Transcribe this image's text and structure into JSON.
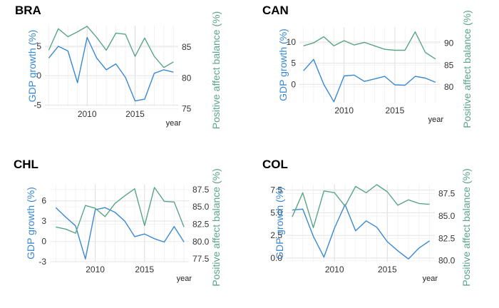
{
  "colors": {
    "gdp": "#3a88d2",
    "affect": "#5aa585",
    "grid": "#e3e3e3"
  },
  "chart_data": [
    {
      "type": "line",
      "title": "BRA",
      "xlabel": "year",
      "ylabel_left": "GDP growth (%)",
      "ylabel_right": "Positive affect balance (%)",
      "x": [
        2006,
        2007,
        2008,
        2009,
        2010,
        2011,
        2012,
        2013,
        2014,
        2015,
        2016,
        2017,
        2018,
        2019
      ],
      "xlim": [
        2005.6,
        2019.5
      ],
      "xticks": [
        2010,
        2015
      ],
      "ylim_left": [
        -5.2,
        8.5
      ],
      "yticks_left": [
        -5,
        0,
        5
      ],
      "ylim_right": [
        75.4,
        88.5
      ],
      "yticks_right": [
        75,
        80,
        85
      ],
      "grid": true,
      "legend": "none",
      "series": [
        {
          "name": "GDP growth (%)",
          "axis": "left",
          "values": [
            3.0,
            5.0,
            4.2,
            -1.2,
            6.5,
            3.0,
            1.0,
            2.0,
            -0.3,
            -4.3,
            -4.0,
            0.4,
            1.0,
            0.6
          ]
        },
        {
          "name": "Positive affect balance (%)",
          "axis": "right",
          "values": [
            84.5,
            88.0,
            86.7,
            87.5,
            88.4,
            86.6,
            84.5,
            87.3,
            87.1,
            83.5,
            86.5,
            83.5,
            81.7,
            82.6
          ]
        }
      ]
    },
    {
      "type": "line",
      "title": "CAN",
      "xlabel": "year",
      "ylabel_left": "GDP growth (%)",
      "ylabel_right": "Positive affect balance (%)",
      "x": [
        2006,
        2007,
        2008,
        2009,
        2010,
        2011,
        2012,
        2013,
        2014,
        2015,
        2016,
        2017,
        2018,
        2019
      ],
      "xlim": [
        2005.6,
        2019.5
      ],
      "xticks": [
        2010,
        2015
      ],
      "ylim_left": [
        -4.3,
        13.5
      ],
      "yticks_left": [
        0,
        5,
        10
      ],
      "ylim_right": [
        76.4,
        93.7
      ],
      "yticks_right": [
        80,
        85,
        90
      ],
      "grid": true,
      "legend": "none",
      "series": [
        {
          "name": "GDP growth (%)",
          "axis": "left",
          "values": [
            3.2,
            5.9,
            0.0,
            -4.1,
            2.0,
            2.2,
            0.7,
            1.3,
            1.9,
            -0.1,
            -0.2,
            1.9,
            1.5,
            0.5
          ]
        },
        {
          "name": "Positive affect balance (%)",
          "axis": "right",
          "values": [
            89.4,
            90.1,
            91.5,
            89.4,
            90.6,
            89.6,
            90.2,
            89.4,
            88.6,
            88.4,
            88.4,
            92.6,
            87.9,
            86.4
          ]
        }
      ]
    },
    {
      "type": "line",
      "title": "CHL",
      "xlabel": "year",
      "ylabel_left": "GDP growth (%)",
      "ylabel_right": "Positive affect balance (%)",
      "x": [
        2006,
        2007,
        2008,
        2009,
        2010,
        2011,
        2012,
        2013,
        2014,
        2015,
        2016,
        2017,
        2018,
        2019
      ],
      "xlim": [
        2005.4,
        2019.5
      ],
      "xticks": [
        2010,
        2015
      ],
      "ylim_left": [
        -3.0,
        8.4
      ],
      "yticks_left": [
        -3,
        0,
        3,
        6
      ],
      "ylim_right": [
        77.1,
        88.2
      ],
      "yticks_right": [
        77.5,
        80.0,
        82.5,
        85.0,
        87.5
      ],
      "grid": true,
      "legend": "none",
      "series": [
        {
          "name": "GDP growth (%)",
          "axis": "left",
          "values": [
            5.0,
            3.6,
            2.3,
            -2.6,
            4.7,
            5.0,
            4.3,
            3.0,
            0.7,
            1.1,
            0.4,
            -0.1,
            2.2,
            -0.1
          ]
        },
        {
          "name": "Positive affect balance (%)",
          "axis": "right",
          "values": [
            82.1,
            81.8,
            81.2,
            85.2,
            84.8,
            83.6,
            85.5,
            86.6,
            87.6,
            82.3,
            87.8,
            85.8,
            85.7,
            82.1
          ]
        }
      ]
    },
    {
      "type": "line",
      "title": "COL",
      "xlabel": "year",
      "ylabel_left": "GDP growth (%)",
      "ylabel_right": "Positive affect balance (%)",
      "x": [
        2006,
        2007,
        2008,
        2009,
        2010,
        2011,
        2012,
        2013,
        2014,
        2015,
        2016,
        2017,
        2018,
        2019
      ],
      "xlim": [
        2005.4,
        2019.5
      ],
      "xticks": [
        2010,
        2015
      ],
      "ylim_left": [
        -0.4,
        8.1
      ],
      "yticks_left": [
        0.0,
        2.5,
        5.0,
        7.5
      ],
      "ylim_right": [
        79.9,
        88.5
      ],
      "yticks_right": [
        80.0,
        82.5,
        85.0,
        87.5
      ],
      "grid": true,
      "legend": "none",
      "series": [
        {
          "name": "GDP growth (%)",
          "axis": "left",
          "values": [
            5.3,
            5.4,
            2.4,
            0.1,
            3.3,
            5.9,
            3.0,
            4.1,
            3.4,
            1.8,
            0.8,
            -0.1,
            1.1,
            1.9
          ]
        },
        {
          "name": "Positive affect balance (%)",
          "axis": "right",
          "values": [
            84.9,
            87.6,
            83.7,
            87.8,
            87.6,
            86.1,
            88.3,
            87.6,
            88.5,
            87.7,
            86.2,
            86.8,
            86.4,
            86.3
          ]
        }
      ]
    }
  ]
}
